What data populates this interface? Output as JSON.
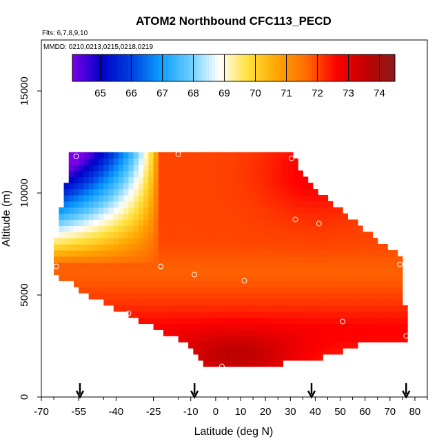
{
  "chart_data": {
    "type": "heatmap",
    "title": "ATOM2 Northbound CFC113_PECD",
    "flights_label": "Flts: 6,7,8,9,10",
    "dates_label": "MMDD: 0210,0213,0215,0218,0219",
    "xlabel": "Latitude (deg N)",
    "ylabel": "Altitude (m)",
    "xlim": [
      -70,
      85
    ],
    "ylim": [
      0,
      17500
    ],
    "x_ticks": [
      -70,
      -55,
      -40,
      -25,
      -10,
      0,
      10,
      20,
      30,
      40,
      50,
      60,
      70,
      80
    ],
    "y_ticks": [
      0,
      5000,
      10000,
      15000
    ],
    "colorbar": {
      "range": [
        64.1,
        74.5
      ],
      "ticks": [
        65,
        66,
        67,
        68,
        69,
        70,
        71,
        72,
        73,
        74
      ],
      "colors": [
        "#7a00e6",
        "#0000c8",
        "#0040e0",
        "#0a9cff",
        "#66ccff",
        "#ffffff",
        "#ffe03a",
        "#ffa500",
        "#ff6a00",
        "#ff0000",
        "#c00000",
        "#8b1a1a"
      ]
    },
    "arrow_latitudes": [
      -54.5,
      -8.5,
      38.5,
      76.5
    ],
    "grid": false,
    "legend": "colorbar top",
    "samples": [
      {
        "x": -56,
        "y": 11800
      },
      {
        "x": -15,
        "y": 11900
      },
      {
        "x": 30.5,
        "y": 11700
      },
      {
        "x": 32,
        "y": 8700
      },
      {
        "x": 41.5,
        "y": 8500
      },
      {
        "x": -22,
        "y": 6400
      },
      {
        "x": -8.5,
        "y": 6000
      },
      {
        "x": 11.5,
        "y": 5700
      },
      {
        "x": 74,
        "y": 6500
      },
      {
        "x": -64,
        "y": 6400
      },
      {
        "x": -35,
        "y": 4100
      },
      {
        "x": 51,
        "y": 3700
      },
      {
        "x": 76.5,
        "y": 3000
      },
      {
        "x": 2.5,
        "y": 1500
      }
    ],
    "domain_top": [
      [
        -58,
        12000
      ],
      [
        31,
        12000
      ],
      [
        33,
        11300
      ],
      [
        36,
        10800
      ],
      [
        40,
        10200
      ],
      [
        44,
        9800
      ],
      [
        50,
        9200
      ],
      [
        55,
        8700
      ],
      [
        60,
        8200
      ],
      [
        65,
        7700
      ],
      [
        70,
        7300
      ],
      [
        75,
        6800
      ],
      [
        76,
        4500
      ],
      [
        77,
        2800
      ]
    ],
    "domain_bottom": [
      [
        -65,
        6000
      ],
      [
        -58,
        5600
      ],
      [
        -52,
        5000
      ],
      [
        -44,
        4600
      ],
      [
        -38,
        4200
      ],
      [
        -32,
        3800
      ],
      [
        -24,
        3400
      ],
      [
        -18,
        3000
      ],
      [
        -12,
        2700
      ],
      [
        -8,
        2200
      ],
      [
        -4,
        1600
      ],
      [
        0,
        1400
      ],
      [
        15,
        1400
      ],
      [
        26,
        1400
      ],
      [
        26,
        1700
      ],
      [
        30,
        1800
      ],
      [
        35,
        1900
      ],
      [
        51,
        2000
      ],
      [
        52,
        2500
      ],
      [
        77,
        2800
      ]
    ]
  }
}
